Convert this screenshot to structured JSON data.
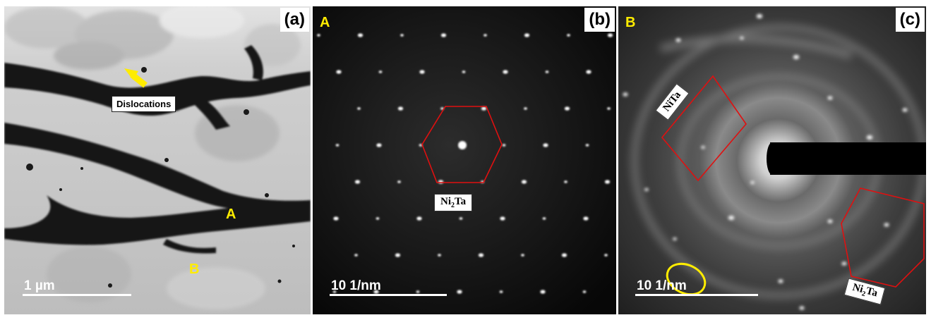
{
  "panel_a": {
    "letter": "(a)",
    "annotation": "Dislocations",
    "point_a": "A",
    "point_b": "B",
    "scale": "1 µm",
    "arrow_color": "#ffec00"
  },
  "panel_b": {
    "letter": "(b)",
    "region": "A",
    "phase_label": "Ni",
    "phase_sub": "2",
    "phase_tail": "Ta",
    "scale": "10 1/nm",
    "overlay_color": "#e01010"
  },
  "panel_c": {
    "letter": "(c)",
    "region": "B",
    "phase_label_1": "NiTa",
    "phase_label_2": "Ni",
    "phase_sub_2": "2",
    "phase_tail_2": "Ta",
    "scale": "10 1/nm",
    "overlay_color": "#e01010",
    "ellipse_color": "#ffec00"
  }
}
